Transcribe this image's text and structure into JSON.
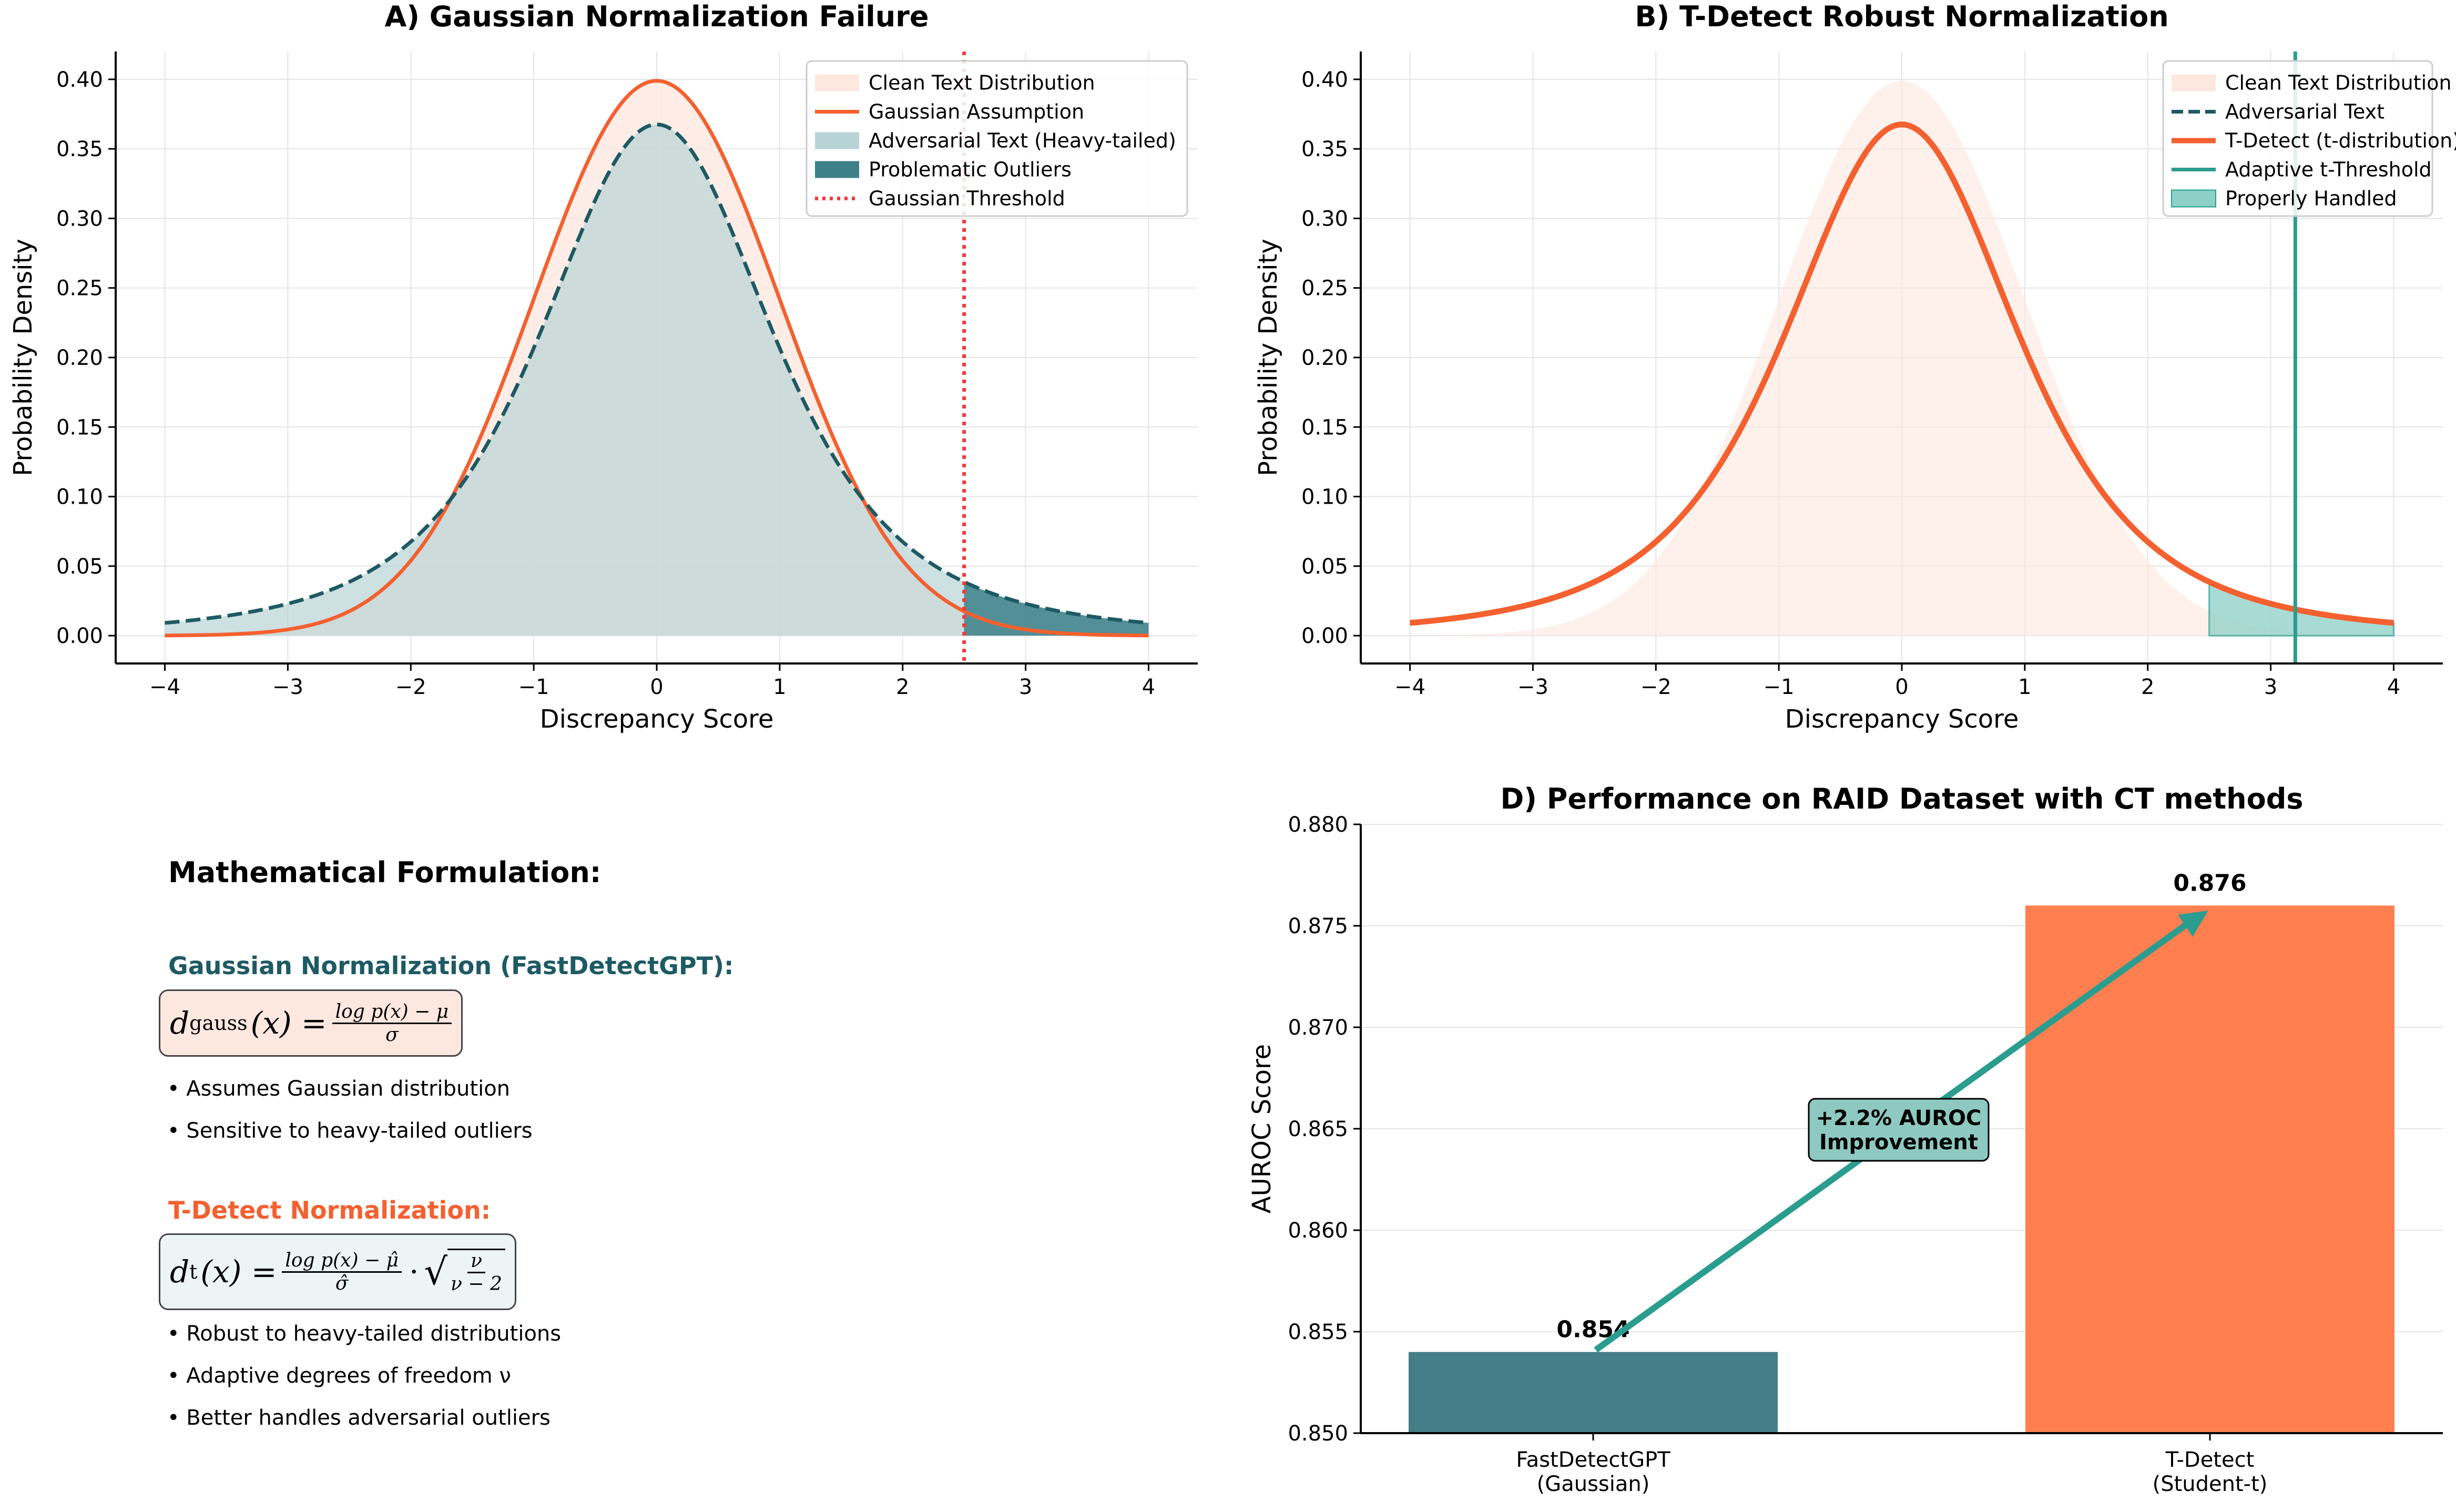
{
  "colors": {
    "clean_fill": "#fde8e0",
    "orange": "#f4602f",
    "teal_dark": "#1e5a63",
    "adv_fill": "#b8d3d6",
    "outlier_fill": "#3d8088",
    "red_threshold": "#f03c3c",
    "teal_green": "#2a9d8f",
    "handled_fill": "#8cd0c6",
    "bar_gauss": "#447e87",
    "bar_t": "#ff7f50",
    "annot_box": "#8ec9c1"
  },
  "chart_data": [
    {
      "type": "line",
      "title": "A) Gaussian Normalization Failure",
      "xlabel": "Discrepancy Score",
      "ylabel": "Probability Density",
      "xlim": [
        -4.4,
        4.4
      ],
      "ylim": [
        -0.02,
        0.42
      ],
      "xticks": [
        -4,
        -3,
        -2,
        -1,
        0,
        1,
        2,
        3,
        4
      ],
      "xtick_labels": [
        "−4",
        "−3",
        "−2",
        "−1",
        "0",
        "1",
        "2",
        "3",
        "4"
      ],
      "yticks": [
        0.0,
        0.05,
        0.1,
        0.15,
        0.2,
        0.25,
        0.3,
        0.35,
        0.4
      ],
      "ytick_labels": [
        "0.00",
        "0.05",
        "0.10",
        "0.15",
        "0.20",
        "0.25",
        "0.30",
        "0.35",
        "0.40"
      ],
      "grid": true,
      "legend_position": "top-right",
      "legend": [
        "Clean Text Distribution",
        "Gaussian Assumption",
        "Adversarial Text (Heavy-tailed)",
        "Problematic Outliers",
        "Gaussian Threshold"
      ],
      "x_range": [
        -4,
        4
      ],
      "gaussian_peak": 0.399,
      "t_distribution_df": 3,
      "t_peak": 0.368,
      "threshold_x": 2.5,
      "outlier_region": [
        2.5,
        4
      ]
    },
    {
      "type": "line",
      "title": "B) T-Detect Robust Normalization",
      "xlabel": "Discrepancy Score",
      "ylabel": "Probability Density",
      "xlim": [
        -4.4,
        4.4
      ],
      "ylim": [
        -0.02,
        0.42
      ],
      "xticks": [
        -4,
        -3,
        -2,
        -1,
        0,
        1,
        2,
        3,
        4
      ],
      "xtick_labels": [
        "−4",
        "−3",
        "−2",
        "−1",
        "0",
        "1",
        "2",
        "3",
        "4"
      ],
      "yticks": [
        0.0,
        0.05,
        0.1,
        0.15,
        0.2,
        0.25,
        0.3,
        0.35,
        0.4
      ],
      "ytick_labels": [
        "0.00",
        "0.05",
        "0.10",
        "0.15",
        "0.20",
        "0.25",
        "0.30",
        "0.35",
        "0.40"
      ],
      "grid": true,
      "legend_position": "top-right",
      "legend": [
        "Clean Text Distribution",
        "Adversarial Text",
        "T-Detect (t-distribution)",
        "Adaptive t-Threshold",
        "Properly Handled"
      ],
      "t_distribution_df": 3,
      "threshold_x": 3.2,
      "handled_region": [
        2.5,
        4
      ]
    },
    {
      "type": "bar",
      "title": "D) Performance on RAID Dataset with CT methods",
      "ylabel": "AUROC Score",
      "ylim": [
        0.85,
        0.88
      ],
      "yticks": [
        0.85,
        0.855,
        0.86,
        0.865,
        0.87,
        0.875,
        0.88
      ],
      "ytick_labels": [
        "0.850",
        "0.855",
        "0.860",
        "0.865",
        "0.870",
        "0.875",
        "0.880"
      ],
      "categories": [
        "FastDetectGPT\n(Gaussian)",
        "T-Detect\n(Student-t)"
      ],
      "category_lines": [
        [
          "FastDetectGPT",
          "(Gaussian)"
        ],
        [
          "T-Detect",
          "(Student-t)"
        ]
      ],
      "values": [
        0.854,
        0.876
      ],
      "value_labels": [
        "0.854",
        "0.876"
      ],
      "annotation": [
        "+2.2% AUROC",
        "Improvement"
      ],
      "grid": true
    }
  ],
  "formulation": {
    "title": "Mathematical Formulation:",
    "gauss_heading": "Gaussian Normalization (FastDetectGPT):",
    "gauss_lhs_d": "d",
    "gauss_lhs_sub": "gauss",
    "gauss_lhs_rest": "(x) =",
    "gauss_num": "log p(x) − μ",
    "gauss_den": "σ",
    "gauss_bullets": [
      "• Assumes Gaussian distribution",
      "• Sensitive to heavy-tailed outliers"
    ],
    "t_heading": "T-Detect Normalization:",
    "t_lhs_d": "d",
    "t_lhs_sub": "t",
    "t_lhs_rest": "(x) =",
    "t_num": "log p(x) − μ̂",
    "t_den": "σ̂",
    "t_dot": "·",
    "t_sqrt_sign": "√",
    "t_sqrt_num": "ν",
    "t_sqrt_den": "ν − 2",
    "t_bullets": [
      "• Robust to heavy-tailed distributions",
      "• Adaptive degrees of freedom ν",
      "• Better handles adversarial outliers"
    ]
  }
}
